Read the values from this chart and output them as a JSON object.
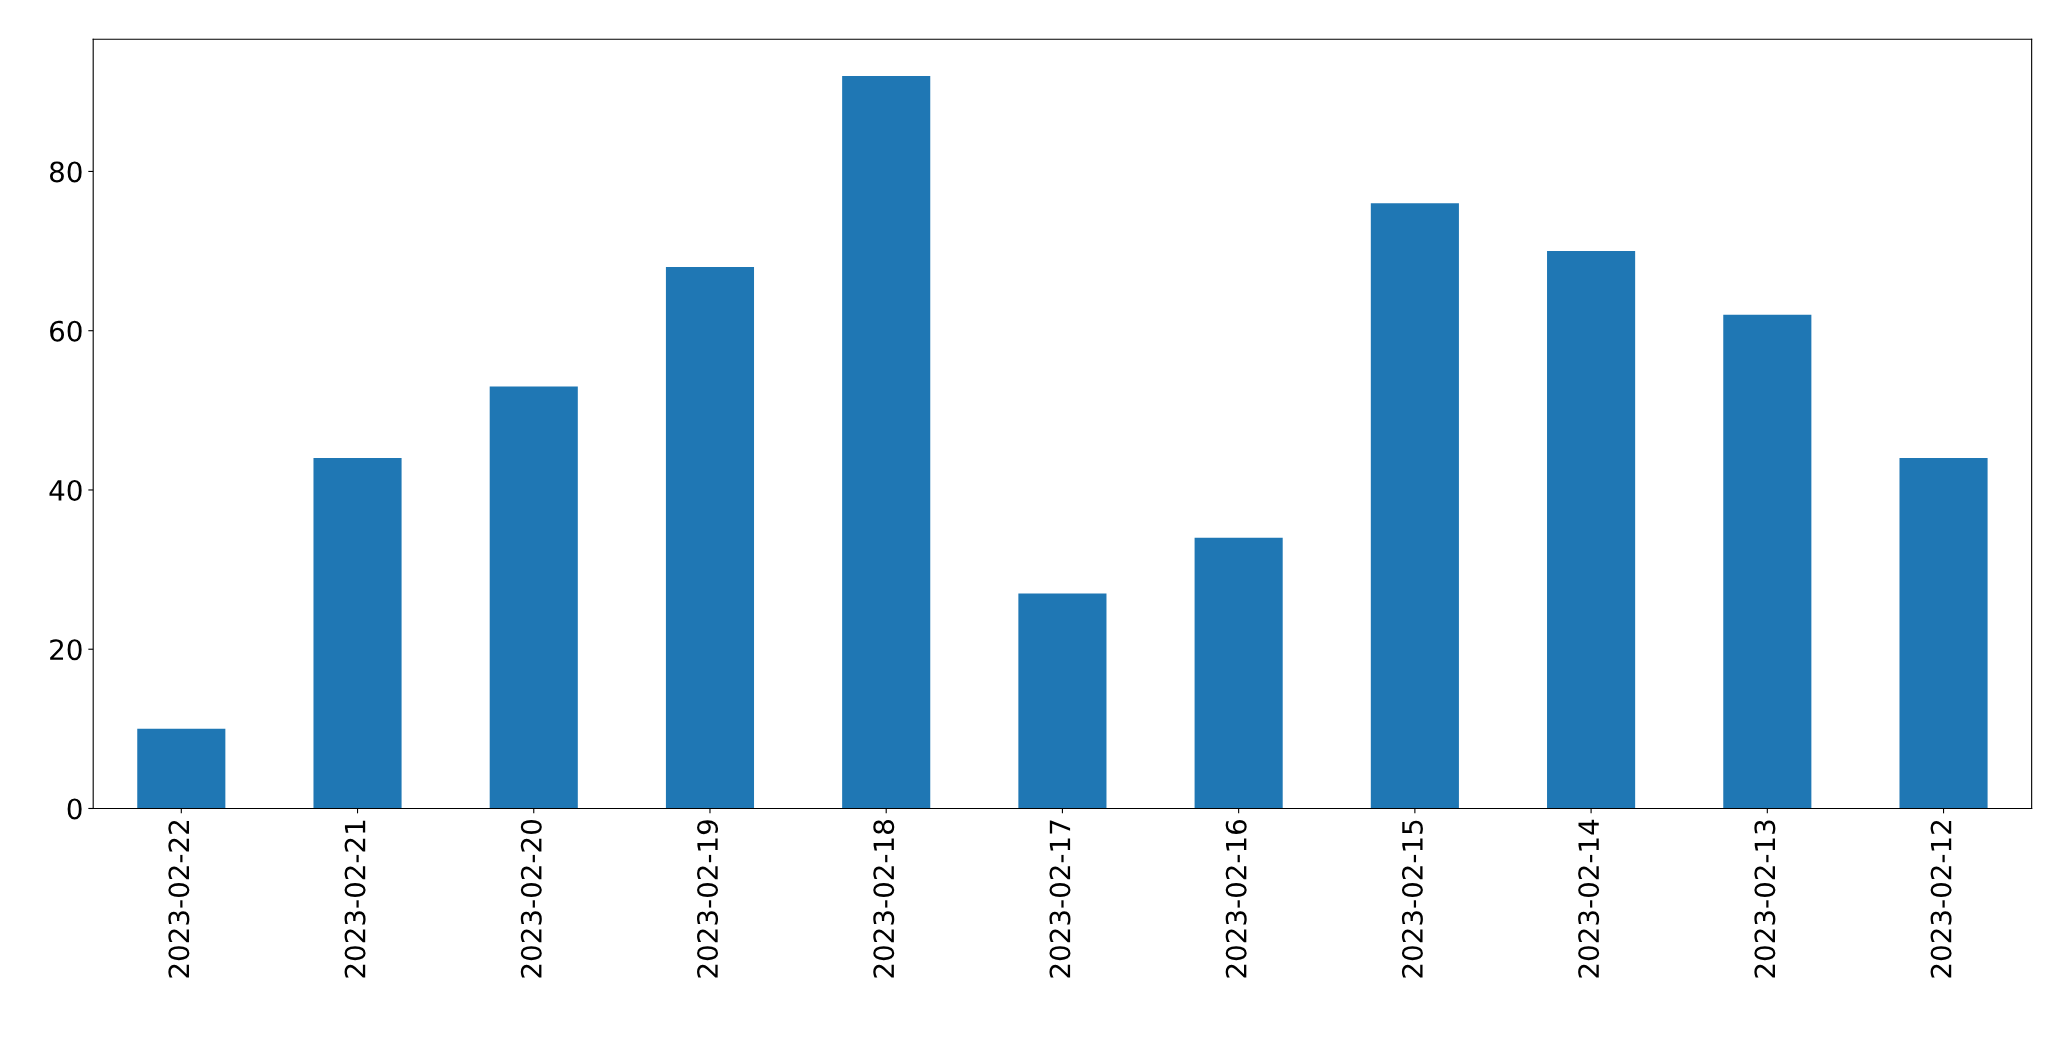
{
  "chart_data": {
    "type": "bar",
    "categories": [
      "2023-02-22",
      "2023-02-21",
      "2023-02-20",
      "2023-02-19",
      "2023-02-18",
      "2023-02-17",
      "2023-02-16",
      "2023-02-15",
      "2023-02-14",
      "2023-02-13",
      "2023-02-12"
    ],
    "values": [
      10,
      44,
      53,
      68,
      92,
      27,
      34,
      76,
      70,
      62,
      44
    ],
    "color": "#1f77b4",
    "ylim": [
      0,
      96.6
    ],
    "yticks": [
      0,
      20,
      40,
      60,
      80
    ],
    "grid": false,
    "legend": false
  }
}
